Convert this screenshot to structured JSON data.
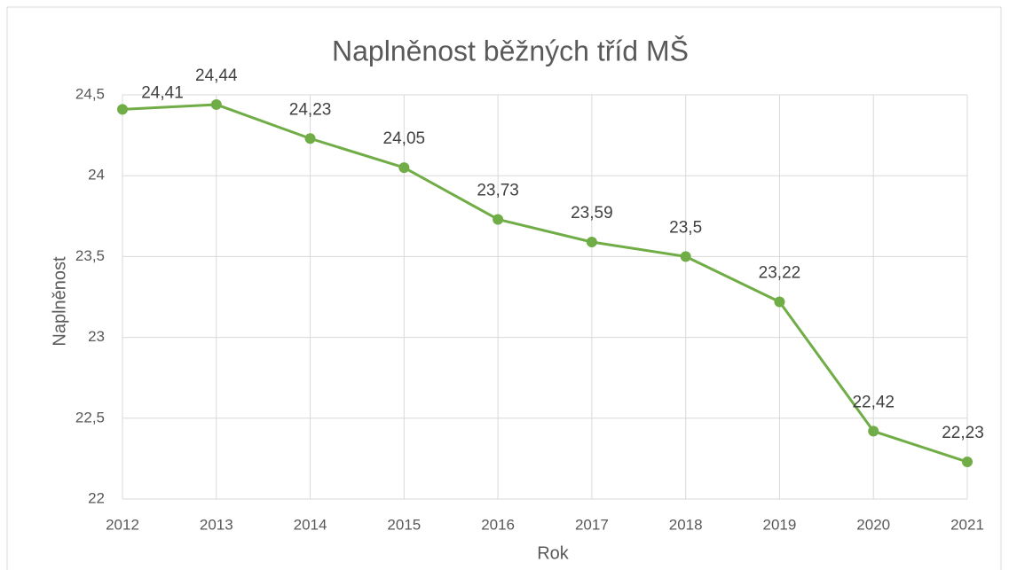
{
  "chart_data": {
    "type": "line",
    "title": "Naplněnost běžných tříd MŠ",
    "x_label": "Rok",
    "y_label": "Naplněnost",
    "x": [
      2012,
      2013,
      2014,
      2015,
      2016,
      2017,
      2018,
      2019,
      2020,
      2021
    ],
    "values": [
      24.41,
      24.44,
      24.23,
      24.05,
      23.73,
      23.59,
      23.5,
      23.22,
      22.42,
      22.23
    ],
    "value_labels": [
      "24,41",
      "24,44",
      "24,23",
      "24,05",
      "23,73",
      "23,59",
      "23,5",
      "23,22",
      "22,42",
      "22,23"
    ],
    "color": "#70ad47",
    "xlim": [
      2012,
      2021
    ],
    "xticks": [
      2012,
      2013,
      2014,
      2015,
      2016,
      2017,
      2018,
      2019,
      2020,
      2021
    ],
    "ylim": [
      22,
      24.5
    ],
    "yticks": [
      22,
      {
        "value": 22.5,
        "label": "22,5"
      },
      23,
      {
        "value": 23.5,
        "label": "23,5"
      },
      24,
      {
        "value": 24.5,
        "label": "24,5"
      }
    ],
    "grid": true
  }
}
